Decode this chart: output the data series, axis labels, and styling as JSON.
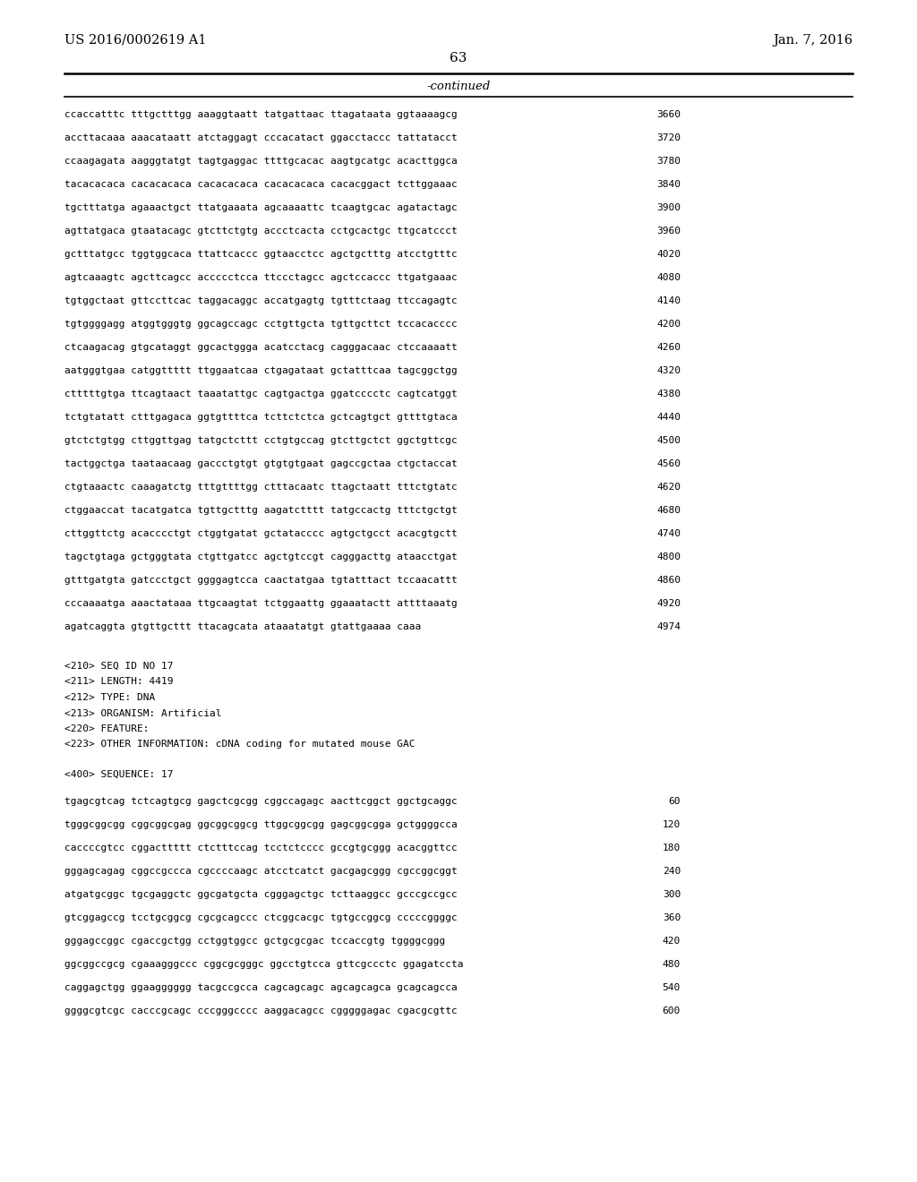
{
  "header_left": "US 2016/0002619 A1",
  "header_right": "Jan. 7, 2016",
  "page_number": "63",
  "continued_label": "-continued",
  "background_color": "#ffffff",
  "text_color": "#000000",
  "sequence_lines_part1": [
    [
      "ccaccatttc tttgctttgg aaaggtaatt tatgattaac ttagataata ggtaaaagcg",
      "3660"
    ],
    [
      "accttacaaa aaacataatt atctaggagt cccacatact ggacctaccc tattatacct",
      "3720"
    ],
    [
      "ccaagagata aagggtatgt tagtgaggac ttttgcacac aagtgcatgc acacttggca",
      "3780"
    ],
    [
      "tacacacaca cacacacaca cacacacaca cacacacaca cacacggact tcttggaaac",
      "3840"
    ],
    [
      "tgctttatga agaaactgct ttatgaaata agcaaaattc tcaagtgcac agatactagc",
      "3900"
    ],
    [
      "agttatgaca gtaatacagc gtcttctgtg accctcacta cctgcactgc ttgcatccct",
      "3960"
    ],
    [
      "gctttatgcc tggtggcaca ttattcaccc ggtaacctcc agctgctttg atcctgtttc",
      "4020"
    ],
    [
      "agtcaaagtc agcttcagcc accccctcca ttccctagcc agctccaccc ttgatgaaac",
      "4080"
    ],
    [
      "tgtggctaat gttccttcac taggacaggc accatgagtg tgtttctaag ttccagagtc",
      "4140"
    ],
    [
      "tgtggggagg atggtgggtg ggcagccagc cctgttgcta tgttgcttct tccacacccc",
      "4200"
    ],
    [
      "ctcaagacag gtgcataggt ggcactggga acatcctacg cagggacaac ctccaaaatt",
      "4260"
    ],
    [
      "aatgggtgaa catggttttt ttggaatcaa ctgagataat gctatttcaa tagcggctgg",
      "4320"
    ],
    [
      "ctttttgtga ttcagtaact taaatattgc cagtgactga ggatcccctc cagtcatggt",
      "4380"
    ],
    [
      "tctgtatatt ctttgagaca ggtgttttca tcttctctca gctcagtgct gttttgtaca",
      "4440"
    ],
    [
      "gtctctgtgg cttggttgag tatgctcttt cctgtgccag gtcttgctct ggctgttcgc",
      "4500"
    ],
    [
      "tactggctga taataacaag gaccctgtgt gtgtgtgaat gagccgctaa ctgctaccat",
      "4560"
    ],
    [
      "ctgtaaactc caaagatctg tttgttttgg ctttacaatc ttagctaatt tttctgtatc",
      "4620"
    ],
    [
      "ctggaaccat tacatgatca tgttgctttg aagatctttt tatgccactg tttctgctgt",
      "4680"
    ],
    [
      "cttggttctg acacccctgt ctggtgatat gctatacccc agtgctgcct acacgtgctt",
      "4740"
    ],
    [
      "tagctgtaga gctgggtata ctgttgatcc agctgtccgt cagggacttg ataacctgat",
      "4800"
    ],
    [
      "gtttgatgta gatccctgct ggggagtcca caactatgaa tgtatttact tccaacattt",
      "4860"
    ],
    [
      "cccaaaatga aaactataaa ttgcaagtat tctggaattg ggaaatactt attttaaatg",
      "4920"
    ],
    [
      "agatcaggta gtgttgcttt ttacagcata ataaatatgt gtattgaaaa caaa",
      "4974"
    ]
  ],
  "metadata_lines": [
    "<210> SEQ ID NO 17",
    "<211> LENGTH: 4419",
    "<212> TYPE: DNA",
    "<213> ORGANISM: Artificial",
    "<220> FEATURE:",
    "<223> OTHER INFORMATION: cDNA coding for mutated mouse GAC"
  ],
  "sequence_label": "<400> SEQUENCE: 17",
  "sequence_lines_part2": [
    [
      "tgagcgtcag tctcagtgcg gagctcgcgg cggccagagc aacttcggct ggctgcaggc",
      "60"
    ],
    [
      "tgggcggcgg cggcggcgag ggcggcggcg ttggcggcgg gagcggcgga gctggggcca",
      "120"
    ],
    [
      "caccccgtcc cggacttttt ctctttccag tcctctcccc gccgtgcggg acacggttcc",
      "180"
    ],
    [
      "gggagcagag cggccgccca cgccccaagc atcctcatct gacgagcggg cgccggcggt",
      "240"
    ],
    [
      "atgatgcggc tgcgaggctc ggcgatgcta cgggagctgc tcttaaggcc gcccgccgcc",
      "300"
    ],
    [
      "gtcggagccg tcctgcggcg cgcgcagccc ctcggcacgc tgtgccggcg cccccggggc",
      "360"
    ],
    [
      "gggagccggc cgaccgctgg cctggtggcc gctgcgcgac tccaccgtg tggggcggg",
      "420"
    ],
    [
      "ggcggccgcg cgaaagggccc cggcgcgggc ggcctgtcca gttcgccctc ggagatccta",
      "480"
    ],
    [
      "caggagctgg ggaagggggg tacgccgcca cagcagcagc agcagcagca gcagcagcca",
      "540"
    ],
    [
      "ggggcgtcgc cacccgcagc cccgggcccc aaggacagcc cgggggagac cgacgcgttc",
      "600"
    ]
  ]
}
